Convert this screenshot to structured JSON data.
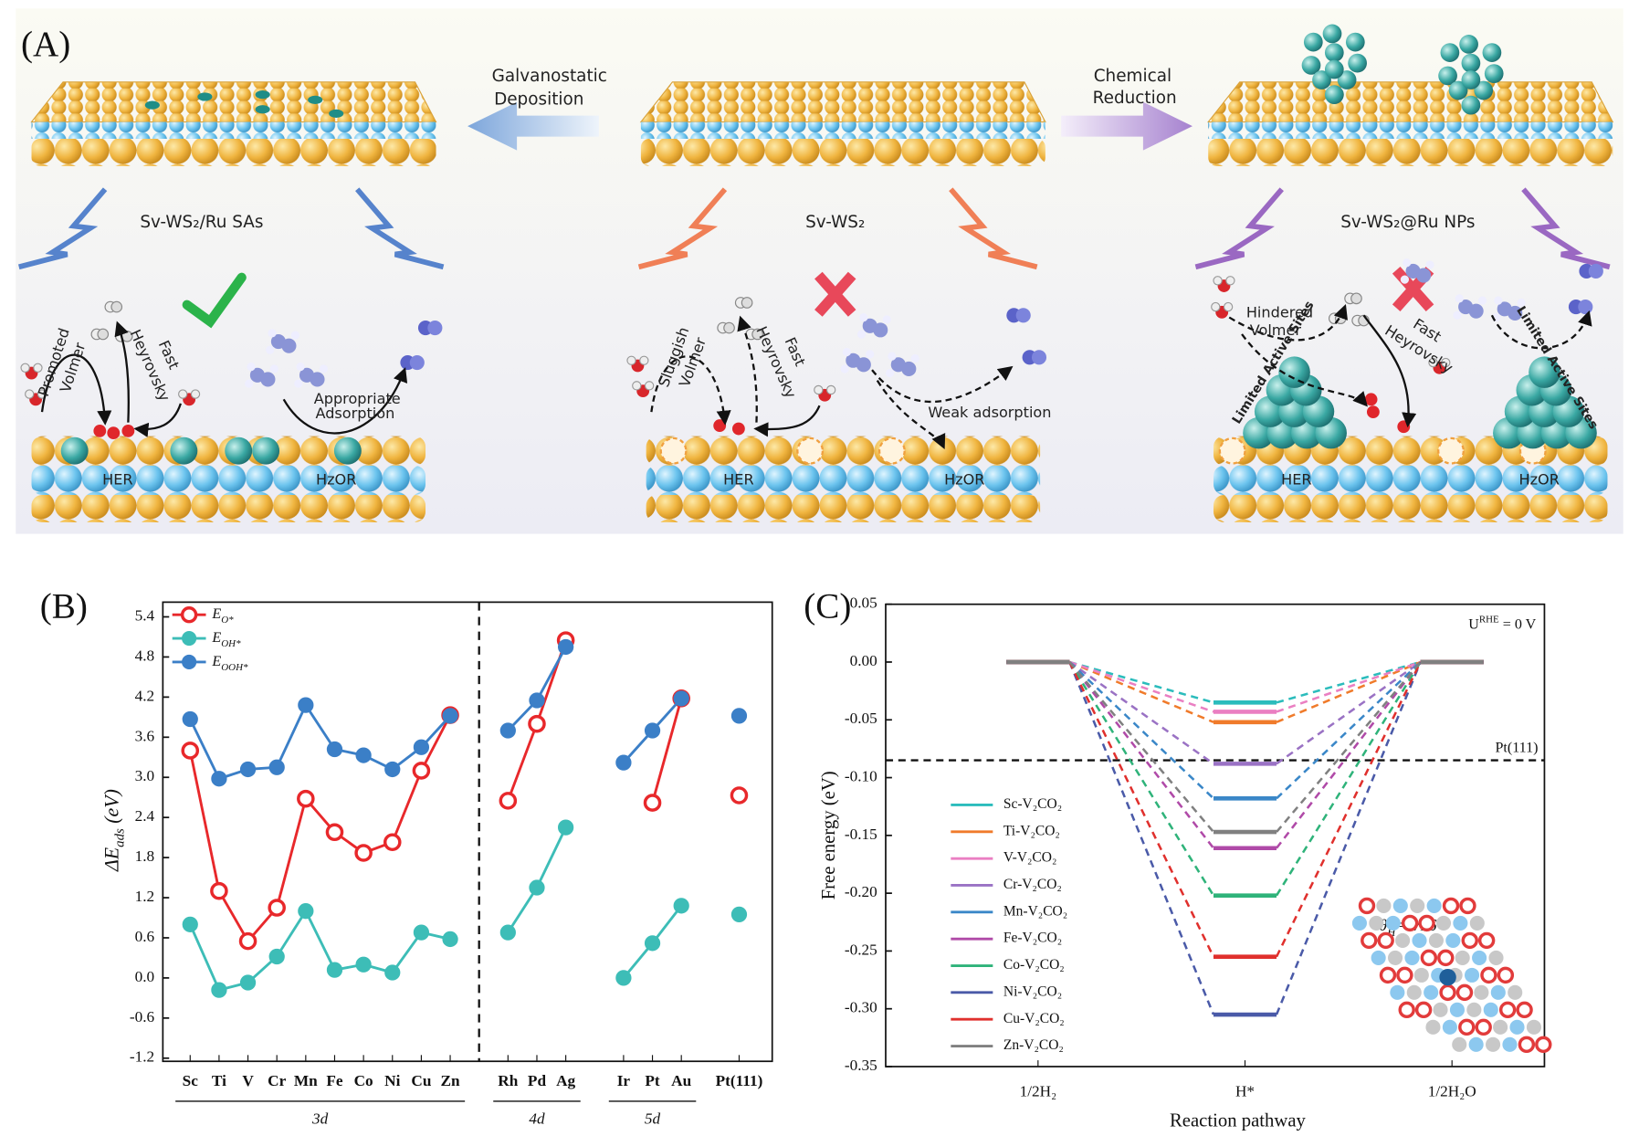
{
  "panel_a": {
    "label": "(A)",
    "left_arrow": [
      "Galvanostatic",
      "Deposition"
    ],
    "right_arrow": [
      "Chemical",
      "Reduction"
    ],
    "materials": [
      "Sv-WS₂/Ru SAs",
      "Sv-WS₂",
      "Sv-WS₂@Ru NPs"
    ],
    "left_scheme": {
      "volmer": [
        "Promoted",
        "Volmer"
      ],
      "heyrovsky": [
        "Fast",
        "Heyrovsky"
      ],
      "adsorption": [
        "Appropriate",
        "Adsorption"
      ],
      "her": "HER",
      "hzor": "HzOR"
    },
    "middle_scheme": {
      "volmer": [
        "Sluggish",
        "Volmer"
      ],
      "heyrovsky": [
        "Fast",
        "Heyrovsky"
      ],
      "adsorption": "Weak adsorption",
      "her": "HER",
      "hzor": "HzOR"
    },
    "right_scheme": {
      "volmer": [
        "Hindered",
        "Volmer"
      ],
      "heyrovsky": [
        "Fast",
        "Heyrovsky"
      ],
      "sites": [
        "Limited Active Sites",
        "Limited Active Sites"
      ],
      "her": "HER",
      "hzor": "HzOR"
    }
  },
  "chart_data": [
    {
      "type": "line",
      "label": "(B)",
      "y_label": "ΔEads (eV)",
      "categories": [
        "Sc",
        "Ti",
        "V",
        "Cr",
        "Mn",
        "Fe",
        "Co",
        "Ni",
        "Cu",
        "Zn",
        null,
        "Rh",
        "Pd",
        "Ag",
        null,
        "Ir",
        "Pt",
        "Au",
        null,
        "Pt(111)"
      ],
      "groups": [
        "3d",
        "4d",
        "5d"
      ],
      "divider": true,
      "ylim": [
        -1.2,
        5.4
      ],
      "yticks": [
        -1.2,
        -0.6,
        {
          "value": 0,
          "label": "0.0"
        },
        0.6,
        1.2,
        1.8,
        2.4,
        {
          "value": 3,
          "label": "3.0"
        },
        3.6,
        4.2,
        4.8,
        5.4
      ],
      "legend": "upper left",
      "series": [
        {
          "name": "EO*",
          "color": "#e8282b",
          "marker": "open",
          "values": [
            3.4,
            1.3,
            0.55,
            1.05,
            2.68,
            2.18,
            1.87,
            2.03,
            3.1,
            3.93,
            null,
            2.65,
            3.8,
            5.05,
            null,
            null,
            2.62,
            4.18,
            null,
            2.73
          ]
        },
        {
          "name": "EOH*",
          "color": "#3dbdb7",
          "marker": "filled",
          "values": [
            0.8,
            -0.18,
            -0.07,
            0.32,
            1.0,
            0.12,
            0.2,
            0.08,
            0.68,
            0.58,
            null,
            0.68,
            1.35,
            2.25,
            null,
            0.0,
            0.52,
            1.08,
            null,
            0.95
          ]
        },
        {
          "name": "EOOH*",
          "color": "#3b7fc7",
          "marker": "filled",
          "values": [
            3.87,
            2.98,
            3.12,
            3.15,
            4.08,
            3.42,
            3.33,
            3.12,
            3.45,
            3.92,
            null,
            3.7,
            4.15,
            4.95,
            null,
            3.22,
            3.7,
            4.18,
            null,
            3.92
          ]
        }
      ]
    },
    {
      "type": "energy-diagram",
      "label": "(C)",
      "y_label": "Free energy (eV)",
      "x_label": "Reaction pathway",
      "categories": [
        "1/2H₂",
        "H*",
        "1/2H₂O"
      ],
      "ylim": [
        -0.35,
        0.05
      ],
      "yticks": [
        0.05,
        {
          "value": 0,
          "label": "0.00"
        },
        -0.05,
        {
          "value": -0.1,
          "label": "-0.10"
        },
        -0.15,
        {
          "value": -0.2,
          "label": "-0.20"
        },
        -0.25,
        {
          "value": -0.3,
          "label": "-0.30"
        },
        -0.35
      ],
      "annotations": [
        "URHE = 0 V",
        "θH=9/16"
      ],
      "reference": {
        "label": "Pt(111)",
        "value": -0.085
      },
      "legend": "lower left",
      "series": [
        {
          "name": "Sc-V₂CO₂",
          "color": "#2bbcbc",
          "values": [
            0,
            -0.035,
            0
          ]
        },
        {
          "name": "Ti-V₂CO₂",
          "color": "#f07b2b",
          "values": [
            0,
            -0.052,
            0
          ]
        },
        {
          "name": "V-V₂CO₂",
          "color": "#ea7fc2",
          "values": [
            0,
            -0.043,
            0
          ]
        },
        {
          "name": "Cr-V₂CO₂",
          "color": "#9a72c4",
          "values": [
            0,
            -0.088,
            0
          ]
        },
        {
          "name": "Mn-V₂CO₂",
          "color": "#3a87c8",
          "values": [
            0,
            -0.118,
            0
          ]
        },
        {
          "name": "Fe-V₂CO₂",
          "color": "#b04aa8",
          "values": [
            0,
            -0.161,
            0
          ]
        },
        {
          "name": "Co-V₂CO₂",
          "color": "#2fb37a",
          "values": [
            0,
            -0.202,
            0
          ]
        },
        {
          "name": "Ni-V₂CO₂",
          "color": "#4a5aa8",
          "values": [
            0,
            -0.305,
            0
          ]
        },
        {
          "name": "Cu-V₂CO₂",
          "color": "#e0302d",
          "values": [
            0,
            -0.255,
            0
          ]
        },
        {
          "name": "Zn-V₂CO₂",
          "color": "#808080",
          "values": [
            0,
            -0.147,
            0
          ]
        }
      ]
    }
  ]
}
